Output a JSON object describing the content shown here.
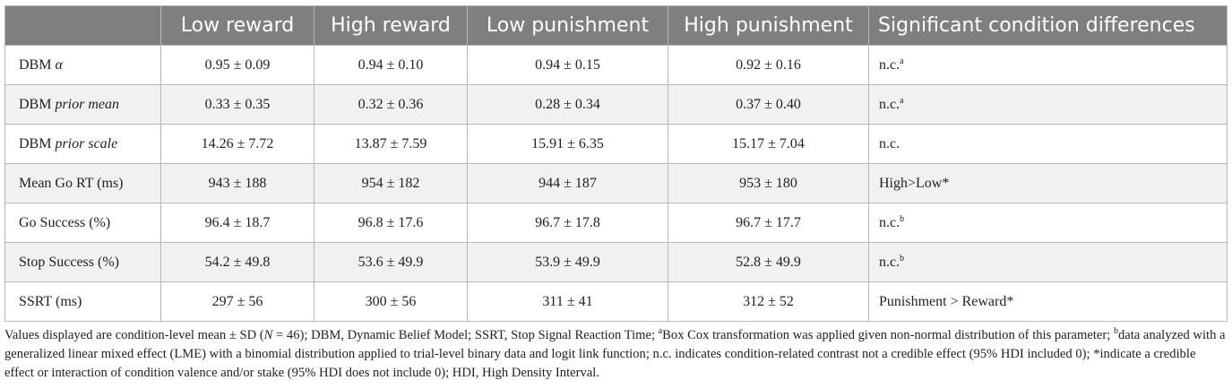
{
  "table": {
    "headers": [
      "",
      "Low reward",
      "High reward",
      "Low punishment",
      "High punishment",
      "Significant condition differences"
    ],
    "rows": [
      {
        "label_pre": "DBM ",
        "label_italic": "α",
        "values": [
          "0.95 ± 0.09",
          "0.94 ± 0.10",
          "0.94 ± 0.15",
          "0.92 ± 0.16"
        ],
        "diff": "n.c.",
        "diff_sup": "a"
      },
      {
        "label_pre": "DBM ",
        "label_italic": "prior mean",
        "values": [
          "0.33 ± 0.35",
          "0.32 ± 0.36",
          "0.28 ± 0.34",
          "0.37 ± 0.40"
        ],
        "diff": "n.c.",
        "diff_sup": "a"
      },
      {
        "label_pre": "DBM ",
        "label_italic": "prior scale",
        "values": [
          "14.26 ± 7.72",
          "13.87 ± 7.59",
          "15.91 ± 6.35",
          "15.17 ± 7.04"
        ],
        "diff": "n.c.",
        "diff_sup": ""
      },
      {
        "label_pre": "Mean Go RT (ms)",
        "label_italic": "",
        "values": [
          "943 ± 188",
          "954 ± 182",
          "944 ± 187",
          "953 ± 180"
        ],
        "diff": "High>Low*",
        "diff_sup": ""
      },
      {
        "label_pre": "Go Success (%)",
        "label_italic": "",
        "values": [
          "96.4 ± 18.7",
          "96.8 ± 17.6",
          "96.7 ± 17.8",
          "96.7 ± 17.7"
        ],
        "diff": "n.c.",
        "diff_sup": "b"
      },
      {
        "label_pre": "Stop Success (%)",
        "label_italic": "",
        "values": [
          "54.2 ± 49.8",
          "53.6 ± 49.9",
          "53.9 ± 49.9",
          "52.8 ± 49.9"
        ],
        "diff": "n.c.",
        "diff_sup": "b"
      },
      {
        "label_pre": "SSRT (ms)",
        "label_italic": "",
        "values": [
          "297 ± 56",
          "300 ± 56",
          "311 ± 41",
          "312 ± 52"
        ],
        "diff": "Punishment > Reward*",
        "diff_sup": ""
      }
    ]
  },
  "footnote": {
    "part1": "Values displayed are condition-level mean ± SD (",
    "n_italic": "N",
    "part2": " = 46); DBM, Dynamic Belief Model; SSRT, Stop Signal Reaction Time; ",
    "sup_a": "a",
    "part3": "Box Cox transformation was applied given non-normal distribution of this parameter; ",
    "sup_b": "b",
    "part4": "data analyzed with a generalized linear mixed effect (LME) with a binomial distribution applied to trial-level binary data and logit link function; n.c. indicates condition-related contrast not a credible effect (95% HDI included 0); *indicate a credible effect or interaction of condition valence and/or stake (95% HDI does not include 0); HDI, High Density Interval."
  }
}
